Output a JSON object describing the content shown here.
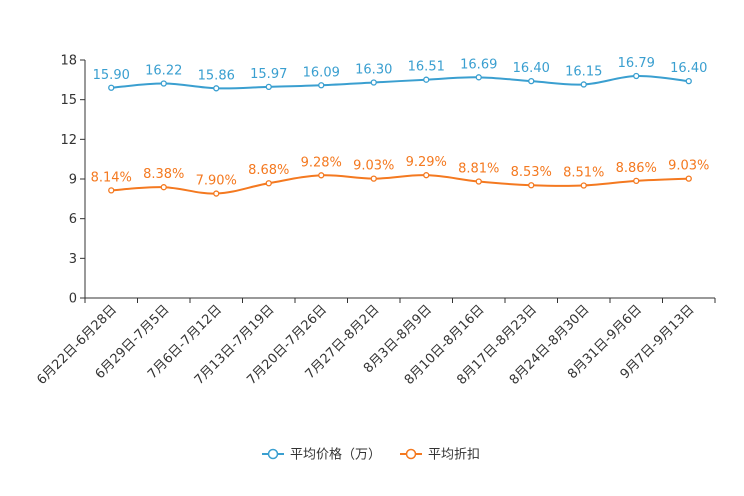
{
  "chart_data": {
    "type": "line",
    "title": "",
    "xlabel": "",
    "ylabel": "",
    "ylim": [
      0,
      18
    ],
    "yticks": [
      0,
      3,
      6,
      9,
      12,
      15,
      18
    ],
    "grid": false,
    "legend_position": "bottom",
    "categories": [
      "6月22日-6月28日",
      "6月29日-7月5日",
      "7月6日-7月12日",
      "7月13日-7月19日",
      "7月20日-7月26日",
      "7月27日-8月2日",
      "8月3日-8月9日",
      "8月10日-8月16日",
      "8月17日-8月23日",
      "8月24日-8月30日",
      "8月31日-9月6日",
      "9月7日-9月13日"
    ],
    "series": [
      {
        "name": "平均价格（万）",
        "color": "#3a9fd0",
        "values": [
          15.9,
          16.22,
          15.86,
          15.97,
          16.09,
          16.3,
          16.51,
          16.69,
          16.4,
          16.15,
          16.79,
          16.4
        ],
        "labels": [
          "15.90",
          "16.22",
          "15.86",
          "15.97",
          "16.09",
          "16.30",
          "16.51",
          "16.69",
          "16.40",
          "16.15",
          "16.79",
          "16.40"
        ]
      },
      {
        "name": "平均折扣",
        "color": "#f47920",
        "values": [
          8.14,
          8.38,
          7.9,
          8.68,
          9.28,
          9.03,
          9.29,
          8.81,
          8.53,
          8.51,
          8.86,
          9.03
        ],
        "labels": [
          "8.14%",
          "8.38%",
          "7.90%",
          "8.68%",
          "9.28%",
          "9.03%",
          "9.29%",
          "8.81%",
          "8.53%",
          "8.51%",
          "8.86%",
          "9.03%"
        ]
      }
    ]
  }
}
